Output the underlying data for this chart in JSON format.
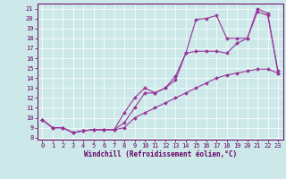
{
  "xlabel": "Windchill (Refroidissement éolien,°C)",
  "ylabel": "",
  "bg_color": "#cce8e8",
  "line_color": "#993399",
  "label_color": "#660066",
  "xlim": [
    -0.5,
    23.5
  ],
  "ylim": [
    7.8,
    21.5
  ],
  "yticks": [
    8,
    9,
    10,
    11,
    12,
    13,
    14,
    15,
    16,
    17,
    18,
    19,
    20,
    21
  ],
  "xticks": [
    0,
    1,
    2,
    3,
    4,
    5,
    6,
    7,
    8,
    9,
    10,
    11,
    12,
    13,
    14,
    15,
    16,
    17,
    18,
    19,
    20,
    21,
    22,
    23
  ],
  "line1_x": [
    0,
    1,
    2,
    3,
    4,
    5,
    6,
    7,
    8,
    9,
    10,
    11,
    12,
    13,
    14,
    15,
    16,
    17,
    18,
    19,
    20,
    21,
    22,
    23
  ],
  "line1_y": [
    9.8,
    9.0,
    9.0,
    8.5,
    8.7,
    8.8,
    8.8,
    8.8,
    10.5,
    12.0,
    13.0,
    12.5,
    13.0,
    14.2,
    16.5,
    19.9,
    20.0,
    20.3,
    18.0,
    18.0,
    18.0,
    20.7,
    20.3,
    14.7
  ],
  "line2_x": [
    0,
    1,
    2,
    3,
    4,
    5,
    6,
    7,
    8,
    9,
    10,
    11,
    12,
    13,
    14,
    15,
    16,
    17,
    18,
    19,
    20,
    21,
    22,
    23
  ],
  "line2_y": [
    9.8,
    9.0,
    9.0,
    8.5,
    8.7,
    8.8,
    8.8,
    8.8,
    9.5,
    11.0,
    12.5,
    12.5,
    13.0,
    13.8,
    16.5,
    16.7,
    16.7,
    16.7,
    16.5,
    17.5,
    18.0,
    21.0,
    20.5,
    14.5
  ],
  "line3_x": [
    0,
    1,
    2,
    3,
    4,
    5,
    6,
    7,
    8,
    9,
    10,
    11,
    12,
    13,
    14,
    15,
    16,
    17,
    18,
    19,
    20,
    21,
    22,
    23
  ],
  "line3_y": [
    9.8,
    9.0,
    9.0,
    8.5,
    8.7,
    8.8,
    8.8,
    8.8,
    9.0,
    10.0,
    10.5,
    11.0,
    11.5,
    12.0,
    12.5,
    13.0,
    13.5,
    14.0,
    14.3,
    14.5,
    14.7,
    14.9,
    14.9,
    14.5
  ]
}
